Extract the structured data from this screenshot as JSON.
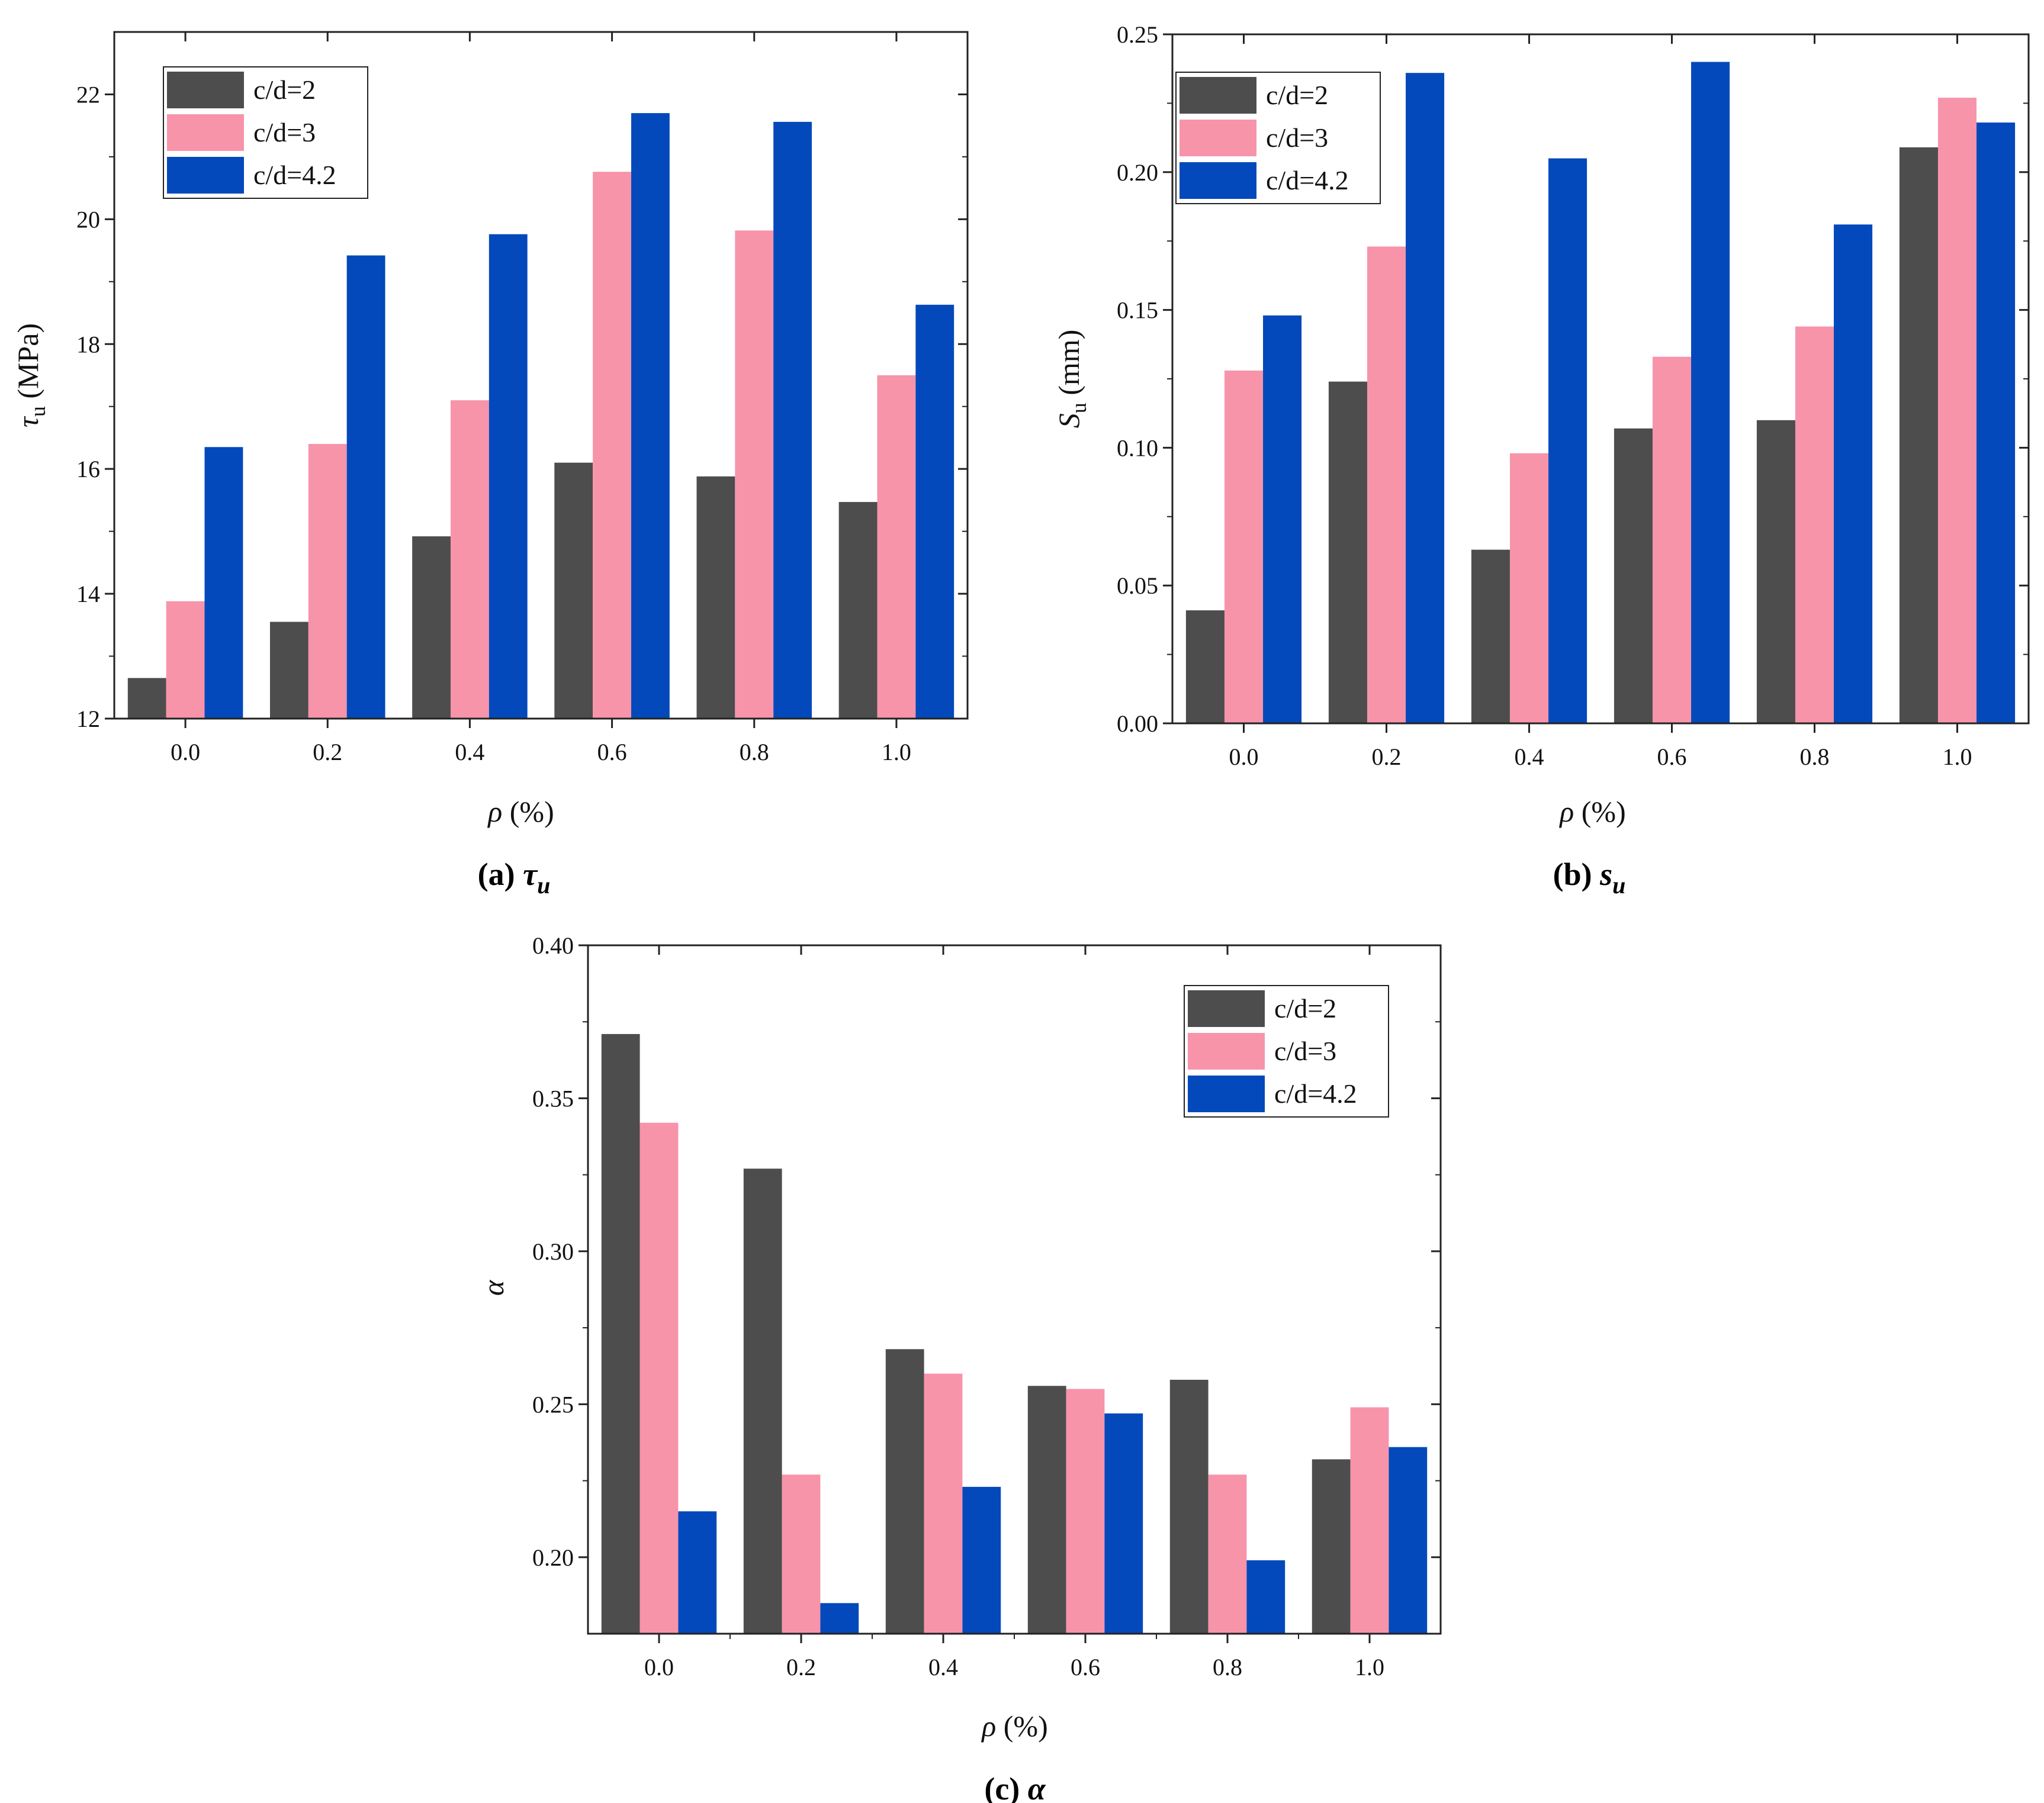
{
  "chart_data": [
    {
      "type": "bar",
      "caption": {
        "label": "(a)",
        "symbol": "τ",
        "sub": "u"
      },
      "categories": [
        "0.0",
        "0.2",
        "0.4",
        "0.6",
        "0.8",
        "1.0"
      ],
      "series": [
        {
          "name": "c/d=2",
          "color": "#4d4d4d",
          "values": [
            12.65,
            13.55,
            14.92,
            16.1,
            15.88,
            15.47
          ]
        },
        {
          "name": "c/d=3",
          "color": "#f794aa",
          "values": [
            13.88,
            16.4,
            17.1,
            20.76,
            19.82,
            17.5
          ]
        },
        {
          "name": "c/d=4.2",
          "color": "#0349bb",
          "values": [
            16.35,
            19.42,
            19.76,
            21.7,
            21.56,
            18.63
          ]
        }
      ],
      "ylim": [
        12,
        23
      ],
      "yticks": [
        "12",
        "14",
        "16",
        "18",
        "20",
        "22"
      ],
      "xlabel": {
        "symbol": "ρ",
        "rest": " (%)"
      },
      "ylabel": {
        "symbol": "τ",
        "sub": "u",
        "rest": " (MPa)"
      },
      "legend_position": "top-left"
    },
    {
      "type": "bar",
      "caption": {
        "label": "(b)",
        "symbol": "s",
        "sub": "u"
      },
      "categories": [
        "0.0",
        "0.2",
        "0.4",
        "0.6",
        "0.8",
        "1.0"
      ],
      "series": [
        {
          "name": "c/d=2",
          "color": "#4d4d4d",
          "values": [
            0.041,
            0.124,
            0.063,
            0.107,
            0.11,
            0.209
          ]
        },
        {
          "name": "c/d=3",
          "color": "#f794aa",
          "values": [
            0.128,
            0.173,
            0.098,
            0.133,
            0.144,
            0.227
          ]
        },
        {
          "name": "c/d=4.2",
          "color": "#0349bb",
          "values": [
            0.148,
            0.236,
            0.205,
            0.24,
            0.181,
            0.218
          ]
        }
      ],
      "ylim": [
        0,
        0.25
      ],
      "yticks": [
        "0.00",
        "0.05",
        "0.10",
        "0.15",
        "0.20",
        "0.25"
      ],
      "xlabel": {
        "symbol": "ρ",
        "rest": " (%)"
      },
      "ylabel": {
        "symbol": "S",
        "sub": "u",
        "rest": " (mm)"
      },
      "legend_position": "top-left"
    },
    {
      "type": "bar",
      "caption": {
        "label": "(c)",
        "symbol": "α",
        "sub": ""
      },
      "categories": [
        "0.0",
        "0.2",
        "0.4",
        "0.6",
        "0.8",
        "1.0"
      ],
      "series": [
        {
          "name": "c/d=2",
          "color": "#4d4d4d",
          "values": [
            0.371,
            0.327,
            0.268,
            0.256,
            0.258,
            0.232
          ]
        },
        {
          "name": "c/d=3",
          "color": "#f794aa",
          "values": [
            0.342,
            0.227,
            0.26,
            0.255,
            0.227,
            0.249
          ]
        },
        {
          "name": "c/d=4.2",
          "color": "#0349bb",
          "values": [
            0.215,
            0.185,
            0.223,
            0.247,
            0.199,
            0.236
          ]
        }
      ],
      "ylim": [
        0.175,
        0.4
      ],
      "yticks": [
        "0.20",
        "0.25",
        "0.30",
        "0.35",
        "0.40"
      ],
      "xlabel": {
        "symbol": "ρ",
        "rest": " (%)"
      },
      "ylabel": {
        "symbol": "α",
        "sub": "",
        "rest": ""
      },
      "legend_position": "top-right"
    }
  ]
}
